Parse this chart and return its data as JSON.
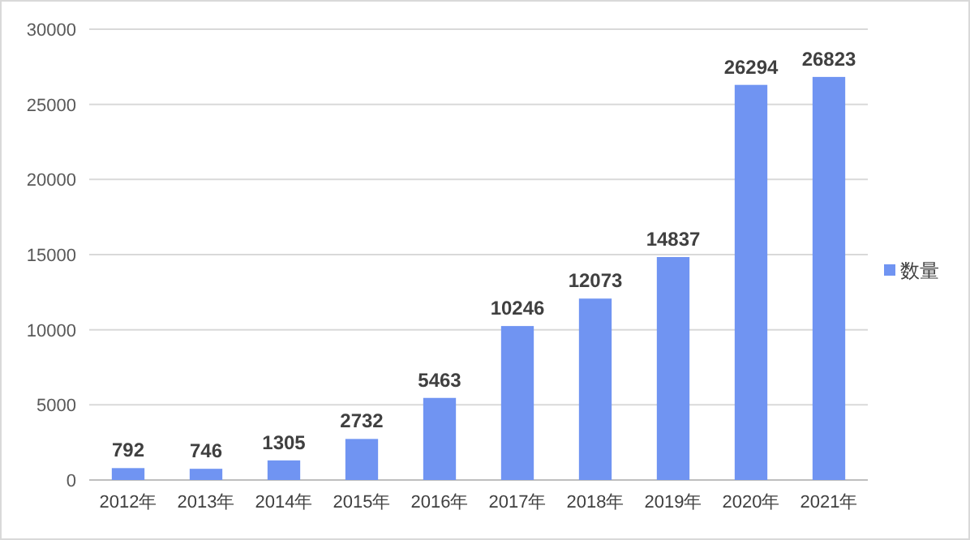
{
  "chart_data": {
    "type": "bar",
    "categories": [
      "2012年",
      "2013年",
      "2014年",
      "2015年",
      "2016年",
      "2017年",
      "2018年",
      "2019年",
      "2020年",
      "2021年"
    ],
    "series": [
      {
        "name": "数量",
        "color": "#7094f2",
        "values": [
          792,
          746,
          1305,
          2732,
          5463,
          10246,
          12073,
          14837,
          26294,
          26823
        ]
      }
    ],
    "ylim": [
      0,
      30000
    ],
    "yticks": [
      0,
      5000,
      10000,
      15000,
      20000,
      25000,
      30000
    ],
    "grid": "y",
    "legend": "right",
    "data_labels": true
  }
}
